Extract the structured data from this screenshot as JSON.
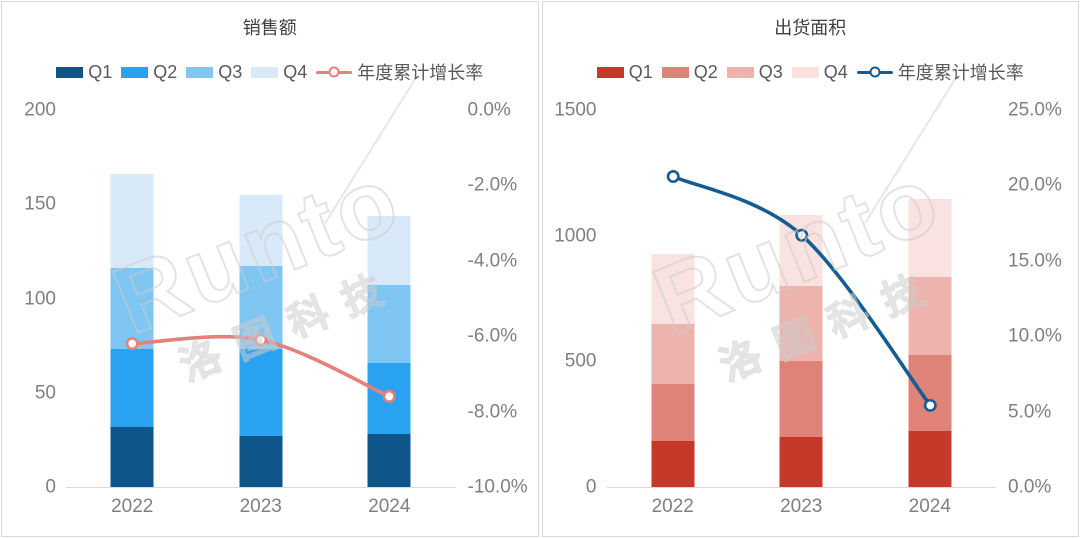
{
  "watermark": {
    "brand": "Runto",
    "cjk": "洛图科技"
  },
  "colors": {
    "panel_border": "#d9d9d9",
    "axis_text": "#808080",
    "title_text": "#3f3f3f",
    "legend_text": "#595959"
  },
  "chart_data": [
    {
      "type": "stacked-bar+line",
      "title": "销售额",
      "categories": [
        "2022",
        "2023",
        "2024"
      ],
      "series": [
        {
          "name": "Q1",
          "values": [
            32,
            27,
            28
          ],
          "color": "#0e568a"
        },
        {
          "name": "Q2",
          "values": [
            41,
            46,
            38
          ],
          "color": "#2aa2f2"
        },
        {
          "name": "Q3",
          "values": [
            43,
            44,
            41
          ],
          "color": "#7fc6f3"
        },
        {
          "name": "Q4",
          "values": [
            50,
            38,
            37
          ],
          "color": "#d8eafa"
        }
      ],
      "totals": [
        166,
        155,
        144
      ],
      "line": {
        "name": "年度累计增长率",
        "values": [
          -6.2,
          -6.1,
          -7.6
        ],
        "color": "#e4817a"
      },
      "bar_axis": {
        "min": 0,
        "max": 200,
        "ticks": [
          "200",
          "150",
          "100",
          "50",
          "0"
        ]
      },
      "line_axis": {
        "min": -10,
        "max": 0,
        "ticks": [
          "0.0%",
          "-2.0%",
          "-4.0%",
          "-6.0%",
          "-8.0%",
          "-10.0%"
        ]
      },
      "legend_position": "top",
      "grid": false
    },
    {
      "type": "stacked-bar+line",
      "title": "出货面积",
      "categories": [
        "2022",
        "2023",
        "2024"
      ],
      "series": [
        {
          "name": "Q1",
          "values": [
            182,
            198,
            222
          ],
          "color": "#c6392a"
        },
        {
          "name": "Q2",
          "values": [
            226,
            305,
            304
          ],
          "color": "#df8277"
        },
        {
          "name": "Q3",
          "values": [
            241,
            297,
            309
          ],
          "color": "#edb4ad"
        },
        {
          "name": "Q4",
          "values": [
            277,
            284,
            310
          ],
          "color": "#f9e2df"
        }
      ],
      "totals": [
        926,
        1084,
        1145
      ],
      "line": {
        "name": "年度累计增长率",
        "values": [
          20.6,
          16.7,
          5.4
        ],
        "color": "#155c92"
      },
      "bar_axis": {
        "min": 0,
        "max": 1500,
        "ticks": [
          "1500",
          "1000",
          "500",
          "0"
        ]
      },
      "line_axis": {
        "min": 0,
        "max": 25,
        "ticks": [
          "25.0%",
          "20.0%",
          "15.0%",
          "10.0%",
          "5.0%",
          "0.0%"
        ]
      },
      "legend_position": "top",
      "grid": false
    }
  ]
}
